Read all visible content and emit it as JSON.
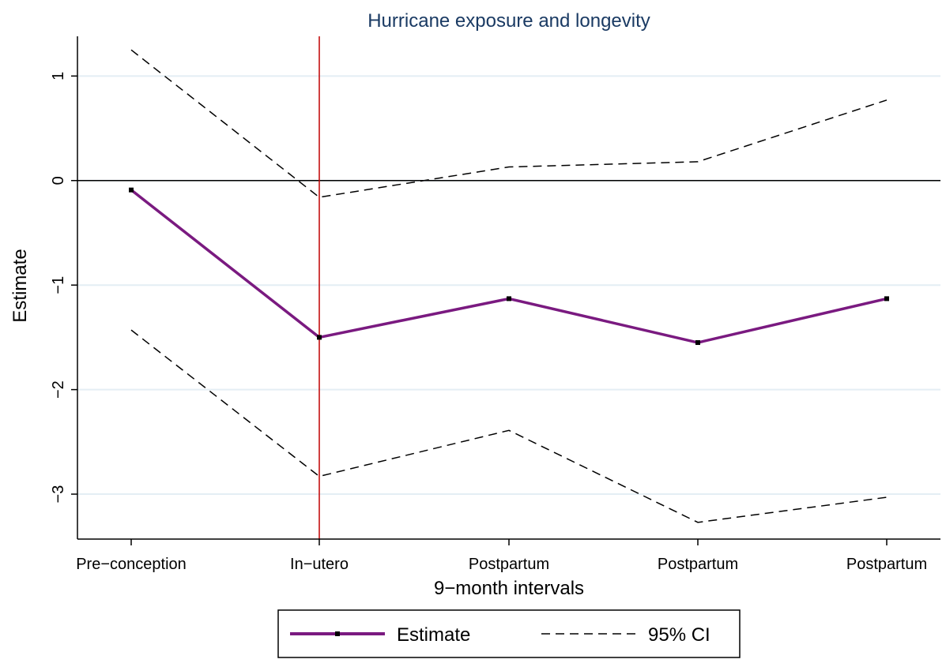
{
  "chart_data": {
    "type": "line",
    "title": "Hurricane exposure and longevity",
    "xlabel": "9−month intervals",
    "ylabel": "Estimate",
    "categories": [
      "Pre−conception",
      "In−utero",
      "Postpartum",
      "Postpartum",
      "Postpartum"
    ],
    "y_ticks": [
      {
        "value": 1,
        "label": "1"
      },
      {
        "value": 0,
        "label": "0"
      },
      {
        "value": -1,
        "label": "−1"
      },
      {
        "value": -2,
        "label": "−2"
      },
      {
        "value": -3,
        "label": "−3"
      }
    ],
    "ylim": [
      -3.43,
      1.38
    ],
    "grid": true,
    "reference_lines": {
      "horizontal_y": 0,
      "vertical_category_index": 1,
      "vertical_color": "#c00000"
    },
    "series": [
      {
        "name": "Estimate",
        "values": [
          -0.09,
          -1.5,
          -1.13,
          -1.55,
          -1.13
        ],
        "color": "#7a1a80",
        "style": "solid-with-markers"
      },
      {
        "name": "95% CI",
        "upper": [
          1.25,
          -0.16,
          0.13,
          0.18,
          0.77
        ],
        "lower": [
          -1.43,
          -2.83,
          -2.39,
          -3.27,
          -3.03
        ],
        "color": "#000000",
        "style": "dashed"
      }
    ],
    "legend_position": "bottom-center",
    "colors": {
      "grid": "#e4eef4",
      "title": "#1a3a63",
      "axis": "#000000"
    }
  }
}
